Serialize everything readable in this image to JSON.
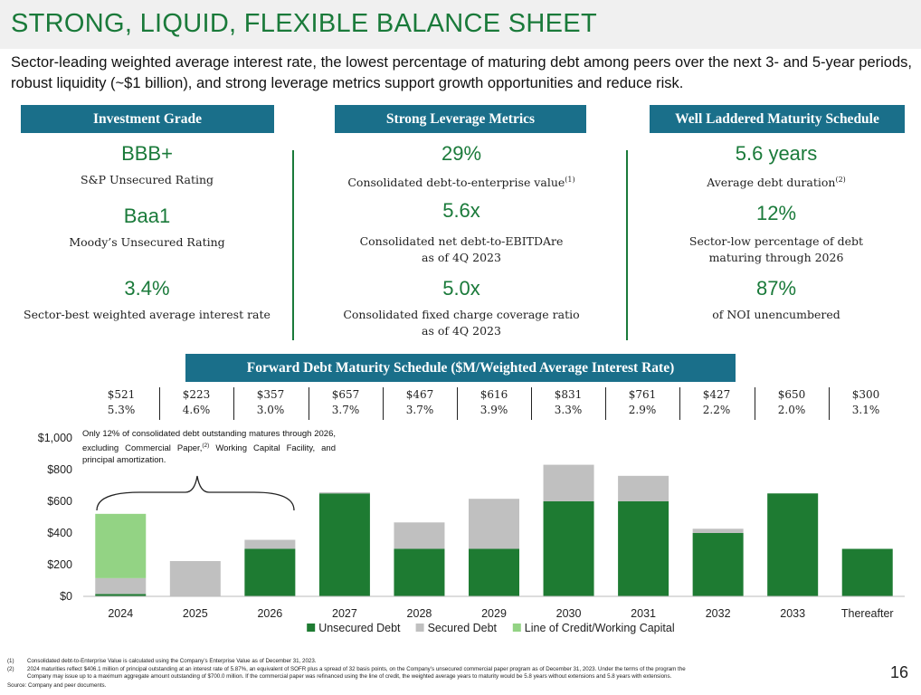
{
  "page": {
    "title": "STRONG, LIQUID, FLEXIBLE BALANCE SHEET",
    "subtitle": "Sector-leading weighted average interest rate, the lowest percentage of maturing debt among peers over the next 3- and 5-year periods, robust liquidity (~$1 billion), and strong leverage metrics support growth opportunities and reduce risk.",
    "page_number": "16"
  },
  "columns": {
    "investment": {
      "header": "Investment Grade",
      "m1": {
        "value": "BBB+",
        "label": "S&P Unsecured Rating"
      },
      "m2": {
        "value": "Baa1",
        "label": "Moody’s Unsecured Rating"
      },
      "m3": {
        "value": "3.4%",
        "label": "Sector-best weighted average interest rate"
      }
    },
    "leverage": {
      "header": "Strong Leverage Metrics",
      "m1": {
        "value": "29%",
        "label": "Consolidated debt-to-enterprise value",
        "sup": "(1)"
      },
      "m2": {
        "value": "5.6x",
        "label_line1": "Consolidated net debt-to-EBITDAre",
        "label_line2": "as of 4Q 2023"
      },
      "m3": {
        "value": "5.0x",
        "label_line1": "Consolidated fixed charge coverage ratio",
        "label_line2": "as of 4Q 2023"
      }
    },
    "maturity": {
      "header": "Well Laddered Maturity Schedule",
      "m1": {
        "value": "5.6 years",
        "label": "Average debt duration",
        "sup": "(2)"
      },
      "m2": {
        "value": "12%",
        "label_line1": "Sector-low percentage of debt",
        "label_line2": "maturing through 2026"
      },
      "m3": {
        "value": "87%",
        "label": "of NOI unencumbered"
      }
    }
  },
  "forward": {
    "header": "Forward Debt Maturity Schedule ($M/Weighted Average Interest Rate)",
    "items": [
      {
        "amount": "$521",
        "rate": "5.3%"
      },
      {
        "amount": "$223",
        "rate": "4.6%"
      },
      {
        "amount": "$357",
        "rate": "3.0%"
      },
      {
        "amount": "$657",
        "rate": "3.7%"
      },
      {
        "amount": "$467",
        "rate": "3.7%"
      },
      {
        "amount": "$616",
        "rate": "3.9%"
      },
      {
        "amount": "$831",
        "rate": "3.3%"
      },
      {
        "amount": "$761",
        "rate": "2.9%"
      },
      {
        "amount": "$427",
        "rate": "2.2%"
      },
      {
        "amount": "$650",
        "rate": "2.0%"
      },
      {
        "amount": "$300",
        "rate": "3.1%"
      }
    ]
  },
  "note": {
    "text": "Only 12% of consolidated debt outstanding matures through 2026, excluding Commercial Paper,",
    "sup": "(2)",
    "text2": " Working Capital Facility, and principal amortization."
  },
  "chart_data": {
    "type": "bar",
    "stacked": true,
    "categories": [
      "2024",
      "2025",
      "2026",
      "2027",
      "2028",
      "2029",
      "2030",
      "2031",
      "2032",
      "2033",
      "Thereafter"
    ],
    "series": [
      {
        "name": "Unsecured Debt",
        "color": "#1e7b32",
        "values": [
          15,
          0,
          300,
          650,
          300,
          300,
          600,
          600,
          400,
          650,
          300
        ]
      },
      {
        "name": "Secured Debt",
        "color": "#c0c0c0",
        "values": [
          100,
          223,
          57,
          7,
          167,
          316,
          231,
          161,
          27,
          0,
          0
        ]
      },
      {
        "name": "Line of Credit/Working Capital",
        "color": "#93d384",
        "values": [
          406,
          0,
          0,
          0,
          0,
          0,
          0,
          0,
          0,
          0,
          0
        ]
      }
    ],
    "ylim": [
      0,
      1000
    ],
    "yticks": [
      0,
      200,
      400,
      600,
      800,
      1000
    ],
    "ytick_labels": [
      "$0",
      "$200",
      "$400",
      "$600",
      "$800",
      "$1,000"
    ],
    "legend": "bottom-center",
    "grid": false
  },
  "footnotes": {
    "f1": {
      "num": "(1)",
      "text": "Consolidated debt-to-Enterprise Value is calculated using the Company’s Enterprise Value as of December 31, 2023."
    },
    "f2a": {
      "num": "(2)",
      "text": "2024 maturities reflect $406.1 million of principal outstanding at an interest rate of 5.87%, an equivalent of SOFR plus a spread of 32 basis points, on the Company’s unsecured commercial paper program as of December 31, 2023. Under the terms of the program the"
    },
    "f2b": {
      "text": "Company may issue up to a maximum aggregate amount outstanding of $700.0 million. If the commercial paper was refinanced using the line of credit, the weighted average years to maturity would be 5.8 years without extensions and 5.8 years with extensions."
    },
    "source": "Source: Company and peer documents."
  }
}
